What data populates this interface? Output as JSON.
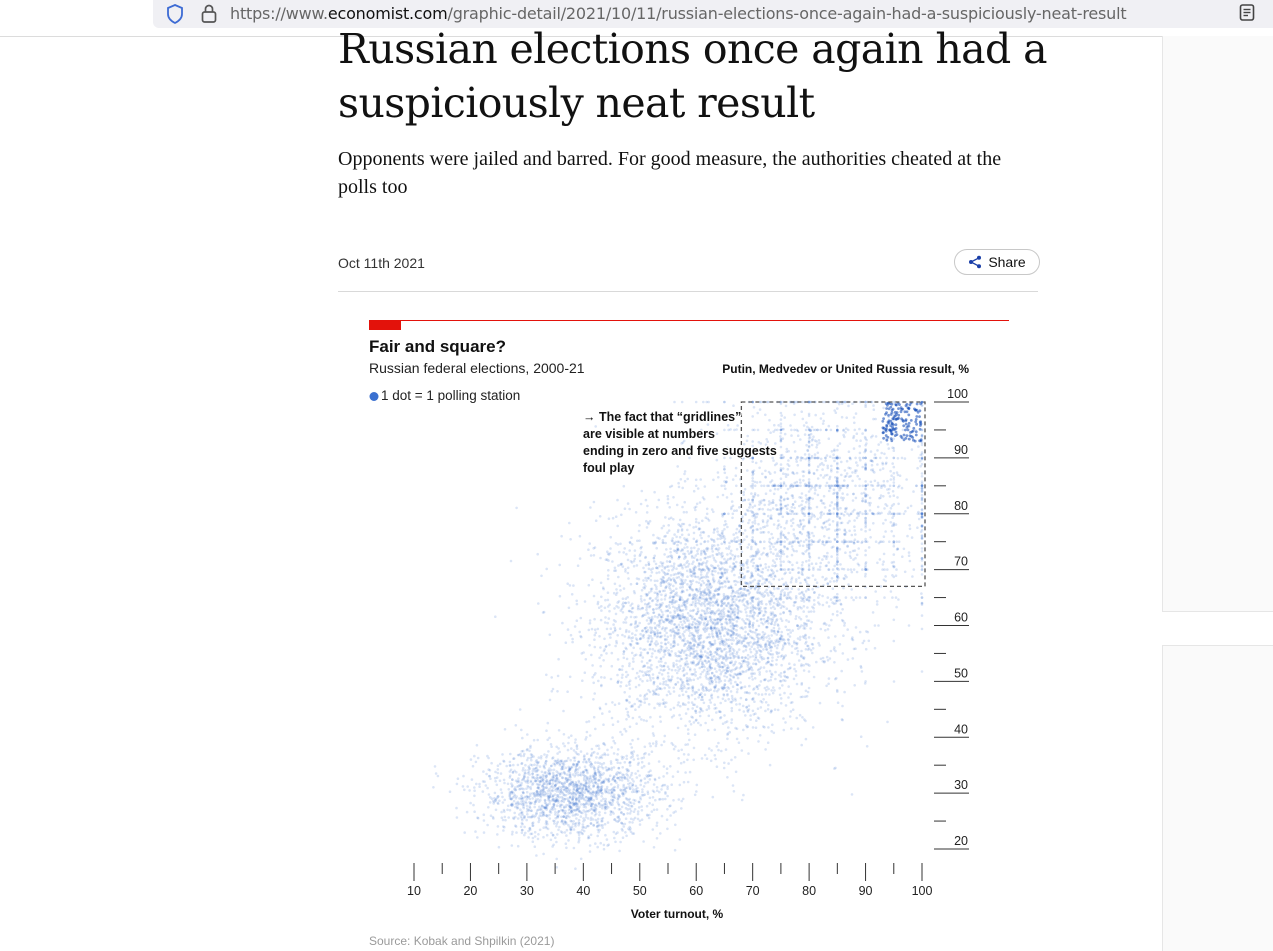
{
  "browser": {
    "url_prefix": "https://www.",
    "url_domain": "economist.com",
    "url_path": "/graphic-detail/2021/10/11/russian-elections-once-again-had-a-suspiciously-neat-result",
    "icons": [
      "shield-icon",
      "lock-icon",
      "reader-view-icon"
    ]
  },
  "article": {
    "headline": "Russian elections once again had a suspiciously neat result",
    "standfirst": "Opponents were jailed and barred. For good measure, the authorities cheated at the polls too",
    "date": "Oct 11th 2021",
    "share_label": "Share"
  },
  "chart_data": {
    "type": "scatter",
    "title": "Fair and square?",
    "subtitle": "Russian federal elections, 2000-21",
    "legend": "1 dot = 1 polling station",
    "ylabel": "Putin, Medvedev or United Russia result, %",
    "xlabel": "Voter turnout, %",
    "xlim": [
      10,
      100
    ],
    "ylim": [
      20,
      100
    ],
    "xticks": [
      "10",
      "20",
      "30",
      "40",
      "50",
      "60",
      "70",
      "80",
      "90",
      "100"
    ],
    "yticks": [
      "100",
      "90",
      "80",
      "70",
      "60",
      "50",
      "40",
      "30",
      "20"
    ],
    "annotation": "→ The fact that “gridlines” are visible at numbers ending in zero and five suggests foul play",
    "highlight_box": {
      "x": [
        68,
        100
      ],
      "y": [
        67,
        100
      ]
    },
    "clusters": [
      {
        "turnout": 62,
        "result": 60,
        "spread_x": 10,
        "spread_y": 10,
        "weight": 0.5
      },
      {
        "turnout": 38,
        "result": 30,
        "spread_x": 8,
        "spread_y": 4,
        "weight": 0.25
      },
      {
        "turnout": 82,
        "result": 82,
        "spread_x": 10,
        "spread_y": 10,
        "weight": 0.25
      }
    ],
    "source": "Source: Kobak and Shpilkin (2021)",
    "colors": {
      "dots": "#1f5fc8",
      "accent": "#e3120b",
      "legend_dot": "#3a70d0"
    }
  }
}
